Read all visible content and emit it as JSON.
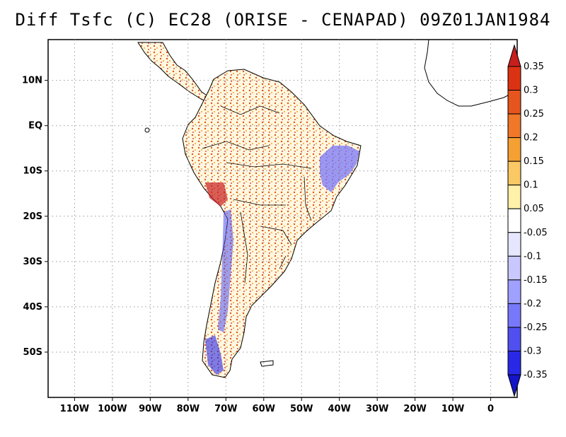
{
  "title": "Diff Tsfc (C) EC28 (ORISE - CENAPAD) 09Z01JAN1984",
  "map": {
    "lon_range": [
      -117,
      7
    ],
    "lat_range": [
      -60,
      19
    ],
    "lon_ticks": [
      "110W",
      "100W",
      "90W",
      "80W",
      "70W",
      "60W",
      "50W",
      "40W",
      "30W",
      "20W",
      "10W",
      "0"
    ],
    "lat_ticks": [
      "10N",
      "EQ",
      "10S",
      "20S",
      "30S",
      "40S",
      "50S"
    ],
    "grid": "dotted",
    "regions": {
      "continent": "South America",
      "warm_dominant": true,
      "cold_clusters": [
        "Northeast Brazil",
        "Andes (western Argentina/Chile)",
        "Southern Chile"
      ]
    }
  },
  "colorbar": {
    "labels": [
      "0.35",
      "0.3",
      "0.25",
      "0.2",
      "0.15",
      "0.1",
      "0.05",
      "-0.05",
      "-0.1",
      "-0.15",
      "-0.2",
      "-0.25",
      "-0.3",
      "-0.35"
    ],
    "colors": [
      "#c81e1e",
      "#dc3214",
      "#e6551e",
      "#f07828",
      "#f5a032",
      "#fac864",
      "#fff0aa",
      "#ffffff",
      "#e6e6ff",
      "#c8c8ff",
      "#a0a0ff",
      "#7878fa",
      "#5050f0",
      "#2828e6",
      "#1414c8"
    ]
  }
}
